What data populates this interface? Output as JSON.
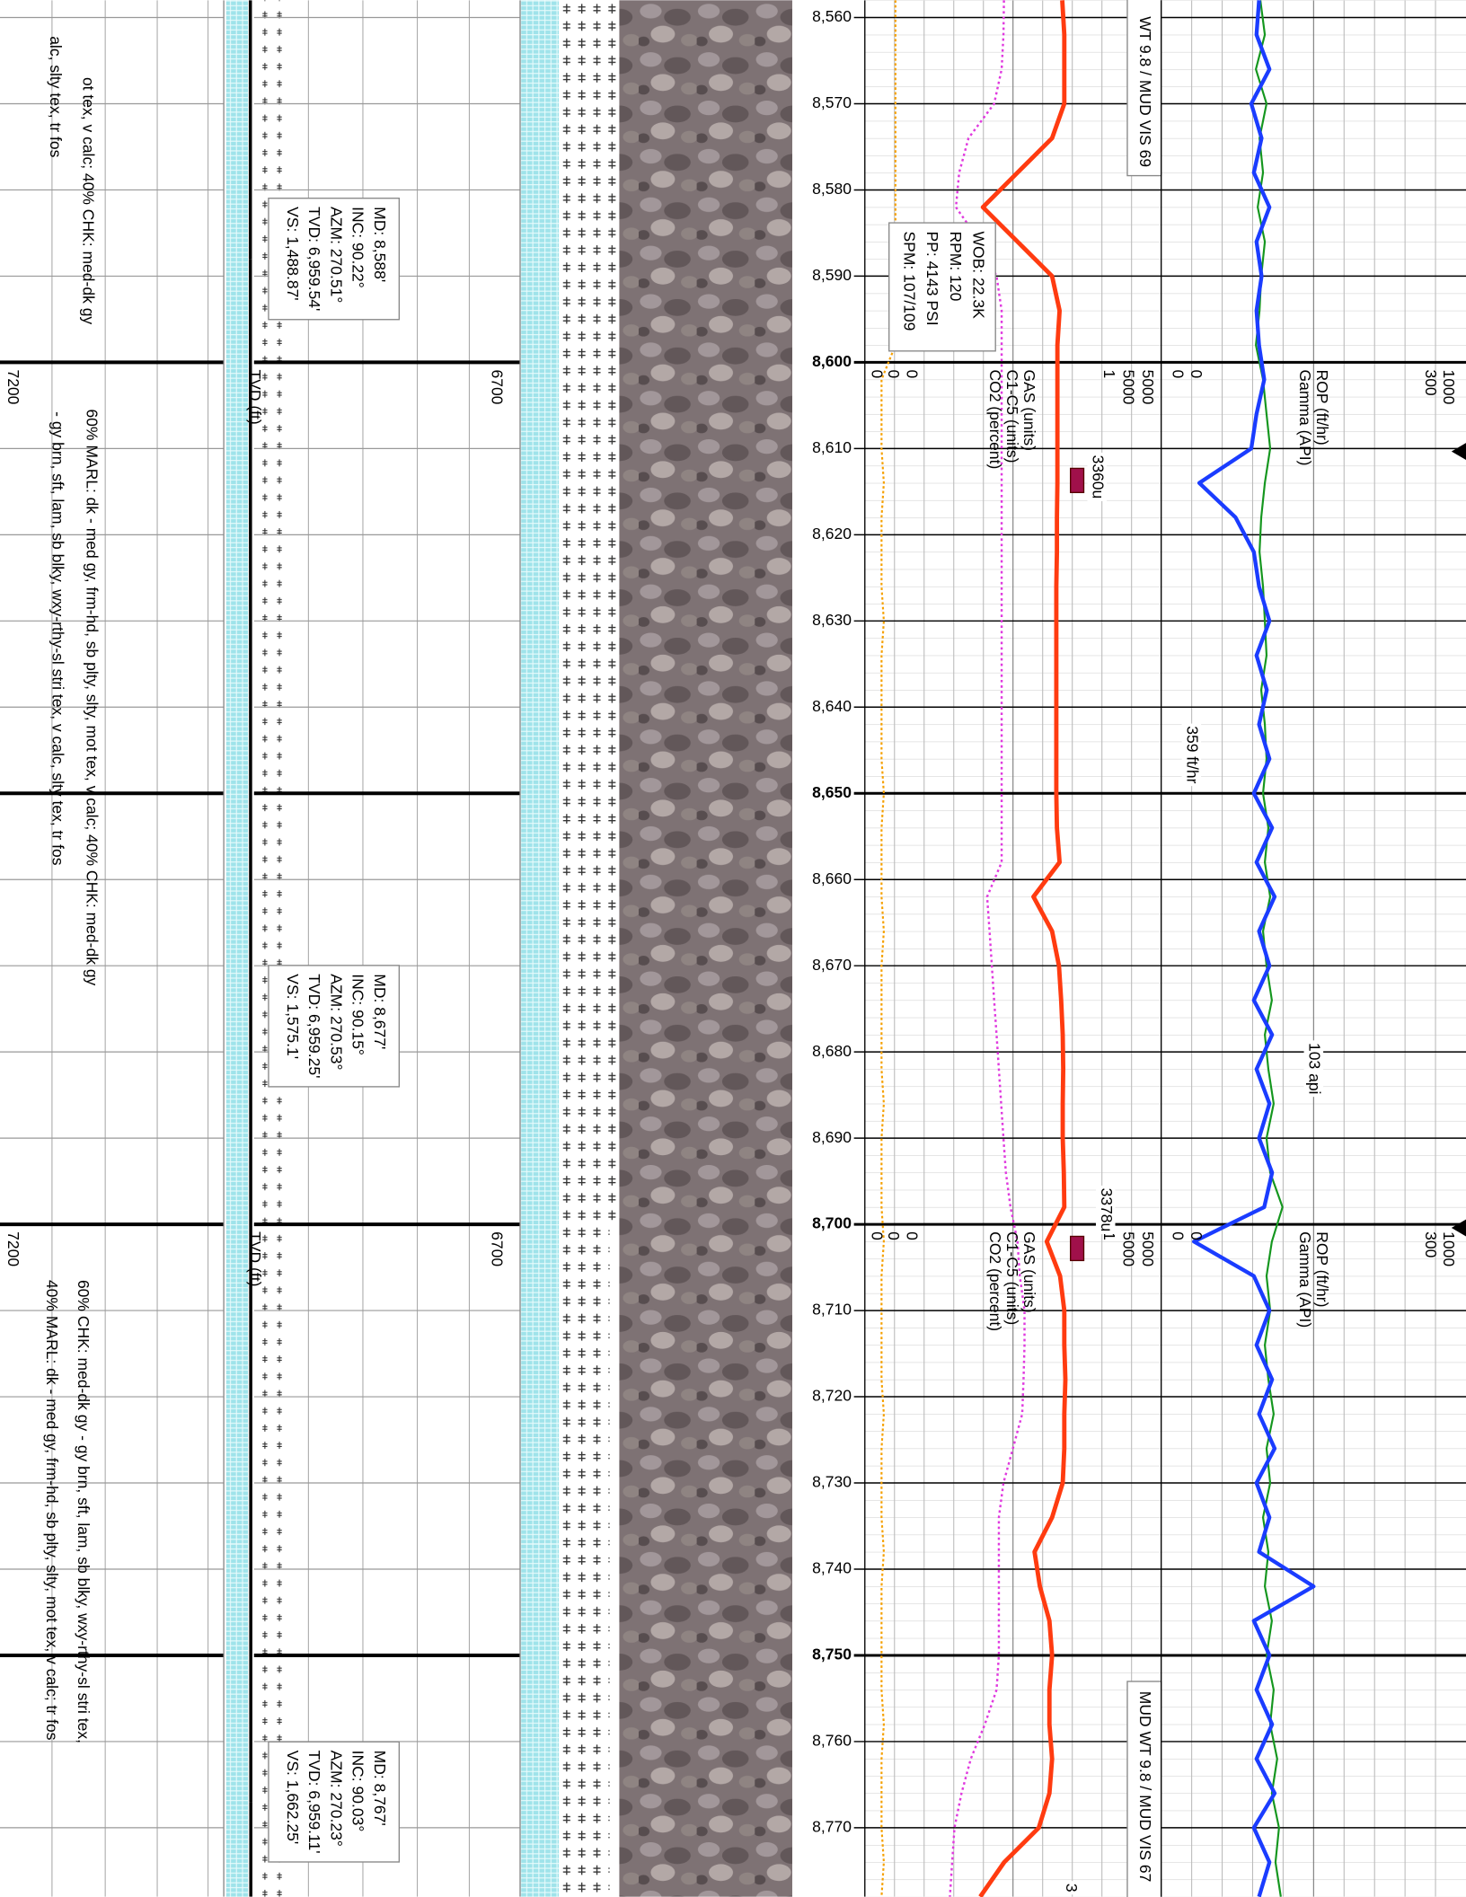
{
  "chart_data": {
    "type": "mudlog",
    "ylim": [
      8558,
      8778
    ],
    "yticks": [
      {
        "value": 8560,
        "label": "8,560"
      },
      {
        "value": 8570,
        "label": "8,570"
      },
      {
        "value": 8580,
        "label": "8,580"
      },
      {
        "value": 8590,
        "label": "8,590"
      },
      {
        "value": 8600,
        "label": "8,600"
      },
      {
        "value": 8610,
        "label": "8,610"
      },
      {
        "value": 8620,
        "label": "8,620"
      },
      {
        "value": 8630,
        "label": "8,630"
      },
      {
        "value": 8640,
        "label": "8,640"
      },
      {
        "value": 8650,
        "label": "8,650"
      },
      {
        "value": 8660,
        "label": "8,660"
      },
      {
        "value": 8670,
        "label": "8,670"
      },
      {
        "value": 8680,
        "label": "8,680"
      },
      {
        "value": 8690,
        "label": "8,690"
      },
      {
        "value": 8700,
        "label": "8,700"
      },
      {
        "value": 8710,
        "label": "8,710"
      },
      {
        "value": 8720,
        "label": "8,720"
      },
      {
        "value": 8730,
        "label": "8,730"
      },
      {
        "value": 8740,
        "label": "8,740"
      },
      {
        "value": 8750,
        "label": "8,750"
      },
      {
        "value": 8760,
        "label": "8,760"
      },
      {
        "value": 8770,
        "label": "8,770"
      }
    ],
    "depth": [
      8558,
      8562,
      8566,
      8570,
      8574,
      8578,
      8582,
      8586,
      8590,
      8594,
      8598,
      8602,
      8606,
      8610,
      8614,
      8618,
      8622,
      8626,
      8630,
      8634,
      8638,
      8642,
      8646,
      8650,
      8654,
      8658,
      8662,
      8666,
      8670,
      8674,
      8678,
      8682,
      8686,
      8690,
      8694,
      8698,
      8702,
      8706,
      8710,
      8714,
      8718,
      8722,
      8726,
      8730,
      8734,
      8738,
      8742,
      8746,
      8750,
      8754,
      8758,
      8762,
      8766,
      8770,
      8774,
      8778
    ],
    "series": [
      {
        "name": "Gamma (API)",
        "color": "#14961e",
        "xlim": [
          0,
          300
        ],
        "values": [
          105,
          110,
          100,
          112,
          104,
          108,
          102,
          110,
          106,
          104,
          100,
          108,
          112,
          116,
          110,
          106,
          104,
          108,
          110,
          112,
          106,
          110,
          112,
          108,
          114,
          110,
          116,
          108,
          112,
          118,
          110,
          114,
          120,
          112,
          116,
          130,
          118,
          112,
          116,
          110,
          114,
          120,
          112,
          116,
          108,
          114,
          110,
          118,
          112,
          120,
          116,
          124,
          118,
          126,
          122,
          128
        ]
      },
      {
        "name": "ROP (ft/hr)",
        "color": "#1a3cff",
        "xlim": [
          0,
          1000
        ],
        "values": [
          260,
          250,
          300,
          230,
          270,
          240,
          300,
          250,
          270,
          250,
          260,
          280,
          250,
          230,
          30,
          170,
          240,
          260,
          300,
          250,
          290,
          260,
          300,
          240,
          310,
          250,
          320,
          260,
          300,
          240,
          310,
          250,
          300,
          260,
          310,
          280,
          10,
          240,
          300,
          250,
          310,
          260,
          320,
          250,
          300,
          260,
          470,
          240,
          300,
          250,
          310,
          250,
          320,
          240,
          300,
          260
        ]
      },
      {
        "name": "CO2 (percent)",
        "color": "#f5a000",
        "xlim": [
          0,
          1
        ],
        "values": [
          0.09,
          0.09,
          0.09,
          0.09,
          0.09,
          0.09,
          0.09,
          0.09,
          0.09,
          0.09,
          0.09,
          0.03,
          0.03,
          0.03,
          0.04,
          0.03,
          0.03,
          0.03,
          0.04,
          0.03,
          0.03,
          0.03,
          0.03,
          0.04,
          0.03,
          0.03,
          0.03,
          0.04,
          0.03,
          0.03,
          0.03,
          0.03,
          0.04,
          0.03,
          0.03,
          0.03,
          0.04,
          0.03,
          0.03,
          0.03,
          0.03,
          0.04,
          0.03,
          0.03,
          0.03,
          0.04,
          0.03,
          0.03,
          0.03,
          0.03,
          0.04,
          0.03,
          0.03,
          0.03,
          0.04,
          0.03
        ]
      },
      {
        "name": "C1-C5 (units)",
        "color": "#e03adf",
        "xlim": [
          0,
          5000
        ],
        "values": [
          2410,
          2400,
          2360,
          2200,
          1650,
          1450,
          1380,
          1900,
          2250,
          2360,
          2360,
          2360,
          2360,
          2360,
          2360,
          2360,
          2360,
          2360,
          2360,
          2360,
          2360,
          2360,
          2360,
          2360,
          2360,
          2360,
          2050,
          2100,
          2150,
          2200,
          2250,
          2300,
          2350,
          2400,
          2450,
          2550,
          2700,
          2750,
          2850,
          2850,
          2830,
          2800,
          2600,
          2400,
          2300,
          2300,
          2300,
          2300,
          2300,
          2250,
          2000,
          1700,
          1500,
          1350,
          1300,
          1250
        ]
      },
      {
        "name": "GAS (units)",
        "color": "#ff3b10",
        "xlim": [
          0,
          5000
        ],
        "values": [
          3140,
          3180,
          3180,
          3180,
          2950,
          2300,
          1650,
          2300,
          2950,
          3090,
          3050,
          3050,
          3050,
          3050,
          3050,
          3040,
          3040,
          3030,
          3030,
          3030,
          3030,
          3030,
          3030,
          3030,
          3040,
          3090,
          2600,
          2950,
          3080,
          3120,
          3150,
          3160,
          3150,
          3150,
          3170,
          3180,
          2850,
          3100,
          3180,
          3180,
          3200,
          3180,
          3180,
          3150,
          2950,
          2620,
          2720,
          2900,
          2950,
          2900,
          2900,
          2950,
          2900,
          2700,
          2050,
          1600
        ]
      }
    ],
    "tvd": {
      "label": "TVD (ft)",
      "xlim": [
        7200,
        6700
      ]
    },
    "surveys": {
      "depth": [
        8588,
        8677,
        8767
      ],
      "tvd": [
        6959.54,
        6959.25,
        6959.11
      ],
      "lines": [
        [
          "MD: 8,588'",
          "INC: 90.22°",
          "AZM: 270.51°",
          "TVD: 6,959.54'",
          "VS: 1,488.87'"
        ],
        [
          "MD: 8,677'",
          "INC: 90.15°",
          "AZM: 270.53°",
          "TVD: 6,959.25'",
          "VS: 1,575.1'"
        ],
        [
          "MD: 8,767'",
          "INC: 90.03°",
          "AZM: 270.23°",
          "TVD: 6,959.11'",
          "VS: 1,662.25'"
        ]
      ]
    },
    "drilling": [
      "WOB: 22.3K",
      "RPM: 120",
      "PP: 4143 PSI",
      "SPM: 107/109"
    ],
    "mud": [
      "WT 9.8 / MUD VIS 69",
      "MUD WT 9.8 / MUD VIS 67"
    ],
    "annotations": [
      "3360u",
      "3378u",
      "359 ft/hr",
      "103 api",
      "3"
    ],
    "lithology": [
      [
        "ot tex, v calc; 40% CHK: med-dk gy",
        "alc, slty tex, tr fos"
      ],
      [
        "60% MARL: dk - med gy, frm-hd, sb plty, slty, mot tex, v calc; 40% CHK: med-dk gy",
        "- gy brn, sft, lam, sb blky, wxy-rthy-sl stri tex, v calc, slty tex, tr fos"
      ],
      [
        "60% CHK: med-dk gy - gy brn, sft, lam, sb blky, wxy-rthy-sl stri tex,",
        "40% MARL: dk - med gy, frm-hd, sb plty, slty, mot tex, v calc; tr fos"
      ]
    ]
  }
}
